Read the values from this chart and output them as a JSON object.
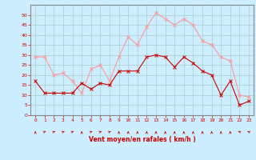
{
  "hours": [
    0,
    1,
    2,
    3,
    4,
    5,
    6,
    7,
    8,
    9,
    10,
    11,
    12,
    13,
    14,
    15,
    16,
    17,
    18,
    19,
    20,
    21,
    22,
    23
  ],
  "wind_avg": [
    17,
    11,
    11,
    11,
    11,
    16,
    13,
    16,
    15,
    22,
    22,
    22,
    29,
    30,
    29,
    24,
    29,
    26,
    22,
    20,
    10,
    17,
    5,
    7
  ],
  "wind_gust": [
    29,
    29,
    20,
    21,
    17,
    11,
    23,
    25,
    17,
    29,
    39,
    35,
    44,
    51,
    48,
    45,
    48,
    45,
    37,
    35,
    29,
    27,
    10,
    9
  ],
  "bg_color": "#cceeff",
  "grid_color": "#aacccc",
  "avg_color": "#cc0000",
  "gust_color": "#ff9999",
  "xlabel": "Vent moyen/en rafales ( km/h )",
  "xlabel_color": "#cc0000",
  "ylim": [
    0,
    55
  ],
  "yticks": [
    0,
    5,
    10,
    15,
    20,
    25,
    30,
    35,
    40,
    45,
    50
  ],
  "tick_color": "#cc0000",
  "spine_color": "#888888",
  "arrow_angles": [
    0,
    45,
    45,
    45,
    45,
    0,
    45,
    45,
    45,
    0,
    0,
    0,
    0,
    0,
    0,
    0,
    0,
    0,
    0,
    0,
    0,
    0,
    315,
    315
  ]
}
